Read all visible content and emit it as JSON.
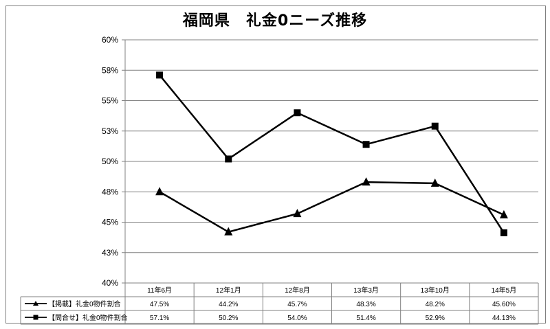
{
  "chart_data": {
    "type": "line",
    "title": "福岡県　礼金0ニーズ推移",
    "categories": [
      "11年6月",
      "12年1月",
      "12年8月",
      "13年3月",
      "13年10月",
      "14年5月"
    ],
    "ylim": [
      0.4,
      0.6
    ],
    "y_ticks": [
      0.4,
      0.425,
      0.45,
      0.475,
      0.5,
      0.525,
      0.55,
      0.575,
      0.6
    ],
    "y_tick_labels": [
      "40%",
      "43%",
      "45%",
      "48%",
      "50%",
      "53%",
      "55%",
      "58%",
      "60%"
    ],
    "grid": true,
    "legend_placement": "data-table-bottom",
    "series": [
      {
        "name": "【掲載】礼金0物件割合",
        "marker": "triangle",
        "values": [
          0.475,
          0.442,
          0.457,
          0.483,
          0.482,
          0.456
        ],
        "labels": [
          "47.5%",
          "44.2%",
          "45.7%",
          "48.3%",
          "48.2%",
          "45.60%"
        ]
      },
      {
        "name": "【問合せ】礼金0物件割合",
        "marker": "square",
        "values": [
          0.571,
          0.502,
          0.54,
          0.514,
          0.529,
          0.4413
        ],
        "labels": [
          "57.1%",
          "50.2%",
          "54.0%",
          "51.4%",
          "52.9%",
          "44.13%"
        ]
      }
    ],
    "colors": {
      "line": "#000000",
      "grid": "#808080"
    }
  }
}
